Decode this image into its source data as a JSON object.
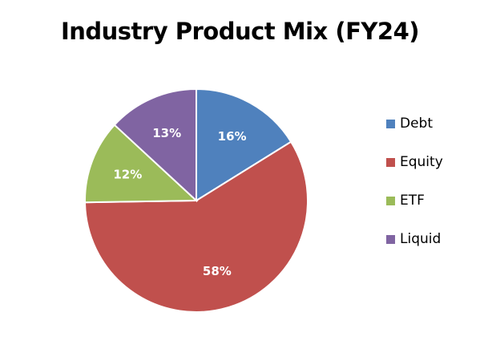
{
  "chart_data": {
    "type": "pie",
    "title": "Industry Product Mix (FY24)",
    "slices": [
      {
        "name": "Debt",
        "value": 16,
        "label": "16%",
        "color": "#4F81BD"
      },
      {
        "name": "Equity",
        "value": 58,
        "label": "58%",
        "color": "#C0504D"
      },
      {
        "name": "ETF",
        "value": 12,
        "label": "12%",
        "color": "#9BBB59"
      },
      {
        "name": "Liquid",
        "value": 13,
        "label": "13%",
        "color": "#8064A2"
      }
    ],
    "legend_position": "right",
    "start_angle": "top",
    "direction": "clockwise"
  }
}
